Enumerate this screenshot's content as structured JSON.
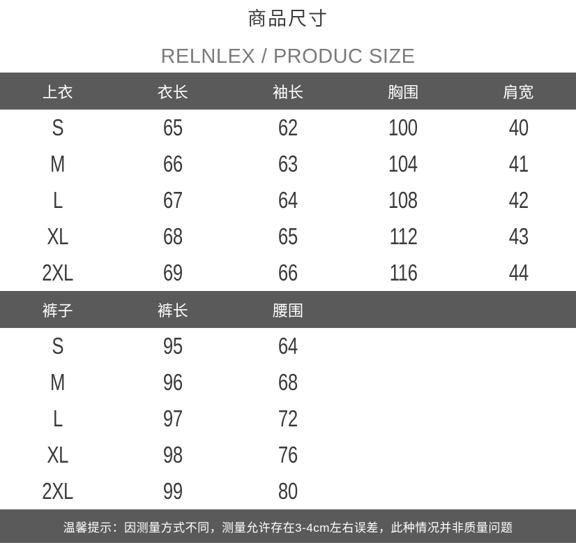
{
  "page": {
    "title": "商品尺寸",
    "subtitle": "RELNLEX / PRODUC SIZE"
  },
  "colors": {
    "header_bar": "#5a5a5a",
    "header_text": "#ffffff",
    "title_text": "#3d3d3d",
    "subtitle_text": "#7a7a7a",
    "value_text": "#3a3a3a",
    "background": "#ffffff"
  },
  "tops_table": {
    "headers": [
      "上衣",
      "衣长",
      "袖长",
      "胸围",
      "肩宽"
    ],
    "rows": [
      {
        "size": "S",
        "values": [
          "65",
          "62",
          "100",
          "40"
        ]
      },
      {
        "size": "M",
        "values": [
          "66",
          "63",
          "104",
          "41"
        ]
      },
      {
        "size": "L",
        "values": [
          "67",
          "64",
          "108",
          "42"
        ]
      },
      {
        "size": "XL",
        "values": [
          "68",
          "65",
          "112",
          "43"
        ]
      },
      {
        "size": "2XL",
        "values": [
          "69",
          "66",
          "116",
          "44"
        ]
      }
    ]
  },
  "pants_table": {
    "headers": [
      "裤子",
      "裤长",
      "腰围"
    ],
    "rows": [
      {
        "size": "S",
        "values": [
          "95",
          "64"
        ]
      },
      {
        "size": "M",
        "values": [
          "96",
          "68"
        ]
      },
      {
        "size": "L",
        "values": [
          "97",
          "72"
        ]
      },
      {
        "size": "XL",
        "values": [
          "98",
          "76"
        ]
      },
      {
        "size": "2XL",
        "values": [
          "99",
          "80"
        ]
      }
    ]
  },
  "footer": {
    "notice": "温馨提示：因测量方式不同，测量允许存在3-4cm左右误差，此种情况并非质量问题"
  }
}
